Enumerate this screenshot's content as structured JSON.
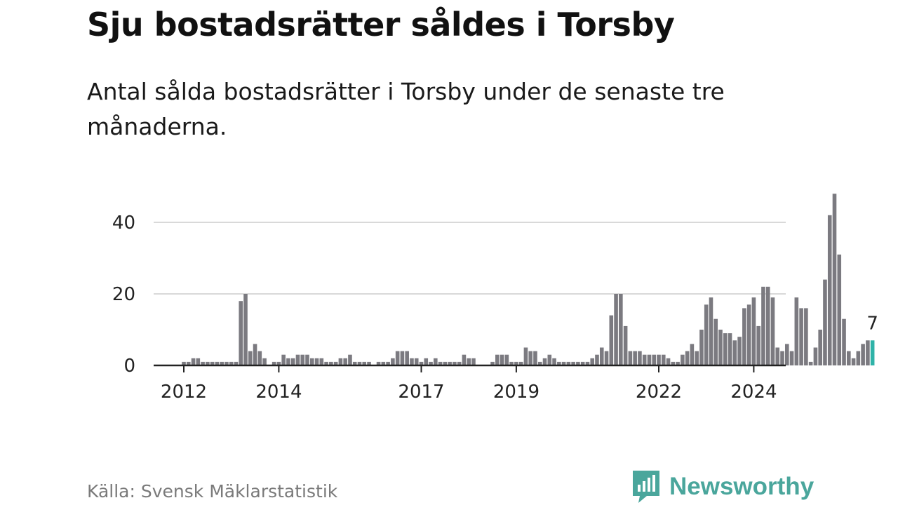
{
  "header": {
    "title": "Sju bostadsrätter såldes i Torsby",
    "subtitle": "Antal sålda bostadsrätter i Torsby under de senaste tre månaderna."
  },
  "footer": {
    "source": "Källa: Svensk Mäklarstatistik",
    "brand": "Newsworthy"
  },
  "colors": {
    "bar": "#7b7a80",
    "highlight": "#2fb3a8",
    "grid": "#d9d9d9",
    "axis": "#222222",
    "brand": "#4aa69c"
  },
  "chart_data": {
    "type": "bar",
    "title": "Sju bostadsrätter såldes i Torsby",
    "xlabel": "",
    "ylabel": "",
    "ylim": [
      0,
      50
    ],
    "yticks": [
      0,
      20,
      40
    ],
    "start": "2012-01",
    "xticks": [
      {
        "label": "2012",
        "index": 0
      },
      {
        "label": "2014",
        "index": 20
      },
      {
        "label": "2017",
        "index": 50
      },
      {
        "label": "2019",
        "index": 70
      },
      {
        "label": "2022",
        "index": 100
      },
      {
        "label": "2024",
        "index": 120
      }
    ],
    "values": [
      1,
      1,
      2,
      2,
      1,
      1,
      1,
      1,
      1,
      1,
      1,
      1,
      18,
      20,
      4,
      6,
      4,
      2,
      0,
      1,
      1,
      3,
      2,
      2,
      3,
      3,
      3,
      2,
      2,
      2,
      1,
      1,
      1,
      2,
      2,
      3,
      1,
      1,
      1,
      1,
      0,
      1,
      1,
      1,
      2,
      4,
      4,
      4,
      2,
      2,
      1,
      2,
      1,
      2,
      1,
      1,
      1,
      1,
      1,
      3,
      2,
      2,
      0,
      0,
      0,
      1,
      3,
      3,
      3,
      1,
      1,
      1,
      5,
      4,
      4,
      1,
      2,
      3,
      2,
      1,
      1,
      1,
      1,
      1,
      1,
      1,
      2,
      3,
      5,
      4,
      14,
      20,
      20,
      11,
      4,
      4,
      4,
      3,
      3,
      3,
      3,
      3,
      2,
      1,
      1,
      3,
      4,
      6,
      4,
      10,
      17,
      19,
      13,
      10,
      9,
      9,
      7,
      8,
      16,
      17,
      19,
      11,
      22,
      22,
      19,
      5,
      4,
      6,
      4,
      19,
      16,
      16,
      1,
      5,
      10,
      24,
      42,
      48,
      31,
      13,
      4,
      2,
      4,
      6,
      7,
      7
    ],
    "highlight_last": true,
    "last_value_label": "7"
  }
}
